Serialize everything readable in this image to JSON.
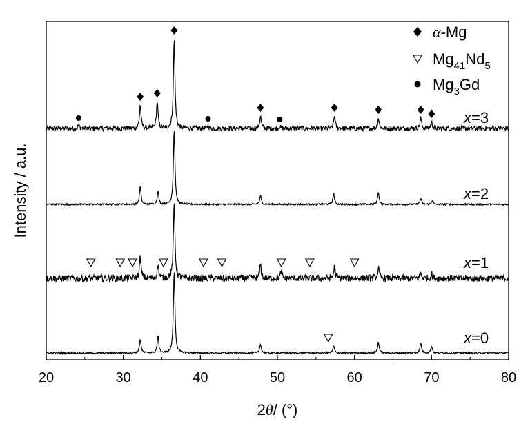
{
  "chart_data": {
    "type": "line",
    "xlabel": {
      "prefix": "2",
      "symbol": "θ",
      "suffix": "/ (°)"
    },
    "ylabel": "Intensity / a.u.",
    "xlim": [
      20,
      80
    ],
    "xticks": [
      20,
      30,
      40,
      50,
      60,
      70,
      80
    ],
    "grid": false,
    "legend_position": "top-right",
    "legend": [
      {
        "marker": "diamond",
        "label_symbol": "α",
        "label_text": "-Mg"
      },
      {
        "marker": "triangle-down-open",
        "label_main": "Mg",
        "sub1": "41",
        "mid": "Nd",
        "sub2": "5"
      },
      {
        "marker": "circle",
        "label_main": "Mg",
        "sub1": "3",
        "mid": "Gd"
      }
    ],
    "series": [
      {
        "name": "x=3",
        "label_var": "x",
        "label_value": "=3",
        "baseline": 3,
        "noise": 0.035,
        "peaks": [
          [
            24.2,
            0.05
          ],
          [
            32.2,
            0.34
          ],
          [
            34.4,
            0.39
          ],
          [
            36.6,
            1.3
          ],
          [
            41.0,
            0.04
          ],
          [
            47.8,
            0.18
          ],
          [
            50.3,
            0.03
          ],
          [
            57.4,
            0.18
          ],
          [
            63.1,
            0.15
          ],
          [
            68.6,
            0.15
          ],
          [
            70.0,
            0.09
          ]
        ]
      },
      {
        "name": "x=2",
        "label_var": "x",
        "label_value": "=2",
        "baseline": 2,
        "noise": 0.012,
        "peaks": [
          [
            32.2,
            0.26
          ],
          [
            34.5,
            0.19
          ],
          [
            36.6,
            1.1
          ],
          [
            47.8,
            0.13
          ],
          [
            57.3,
            0.16
          ],
          [
            63.1,
            0.18
          ],
          [
            68.6,
            0.09
          ],
          [
            70.1,
            0.06
          ]
        ]
      },
      {
        "name": "x=1",
        "label_var": "x",
        "label_value": "=1",
        "baseline": 1,
        "noise": 0.05,
        "peaks": [
          [
            32.2,
            0.3
          ],
          [
            34.5,
            0.2
          ],
          [
            36.6,
            1.1
          ],
          [
            47.8,
            0.2
          ],
          [
            50.5,
            0.1
          ],
          [
            57.4,
            0.16
          ],
          [
            63.1,
            0.15
          ],
          [
            68.6,
            0.07
          ],
          [
            70.0,
            0.06
          ]
        ]
      },
      {
        "name": "x=0",
        "label_var": "x",
        "label_value": "=0",
        "baseline": 0,
        "noise": 0.012,
        "peaks": [
          [
            32.2,
            0.2
          ],
          [
            34.5,
            0.24
          ],
          [
            36.6,
            1.2
          ],
          [
            47.8,
            0.13
          ],
          [
            57.3,
            0.1
          ],
          [
            63.1,
            0.16
          ],
          [
            68.6,
            0.14
          ],
          [
            70.0,
            0.1
          ]
        ]
      }
    ],
    "phase_markers": {
      "alpha_Mg": [
        [
          32.2,
          3
        ],
        [
          34.4,
          3
        ],
        [
          36.6,
          3
        ],
        [
          47.8,
          3
        ],
        [
          57.4,
          3
        ],
        [
          63.1,
          3
        ],
        [
          68.6,
          3
        ],
        [
          70.0,
          3
        ]
      ],
      "Mg3Gd": [
        [
          24.2,
          3
        ],
        [
          41.0,
          3
        ],
        [
          50.3,
          3
        ]
      ],
      "Mg41Nd5": [
        [
          25.8,
          1
        ],
        [
          29.6,
          1
        ],
        [
          31.2,
          1
        ],
        [
          35.2,
          1
        ],
        [
          40.4,
          1
        ],
        [
          42.8,
          1
        ],
        [
          50.5,
          1
        ],
        [
          54.2,
          1
        ],
        [
          60.0,
          1
        ],
        [
          56.6,
          0
        ]
      ]
    }
  }
}
